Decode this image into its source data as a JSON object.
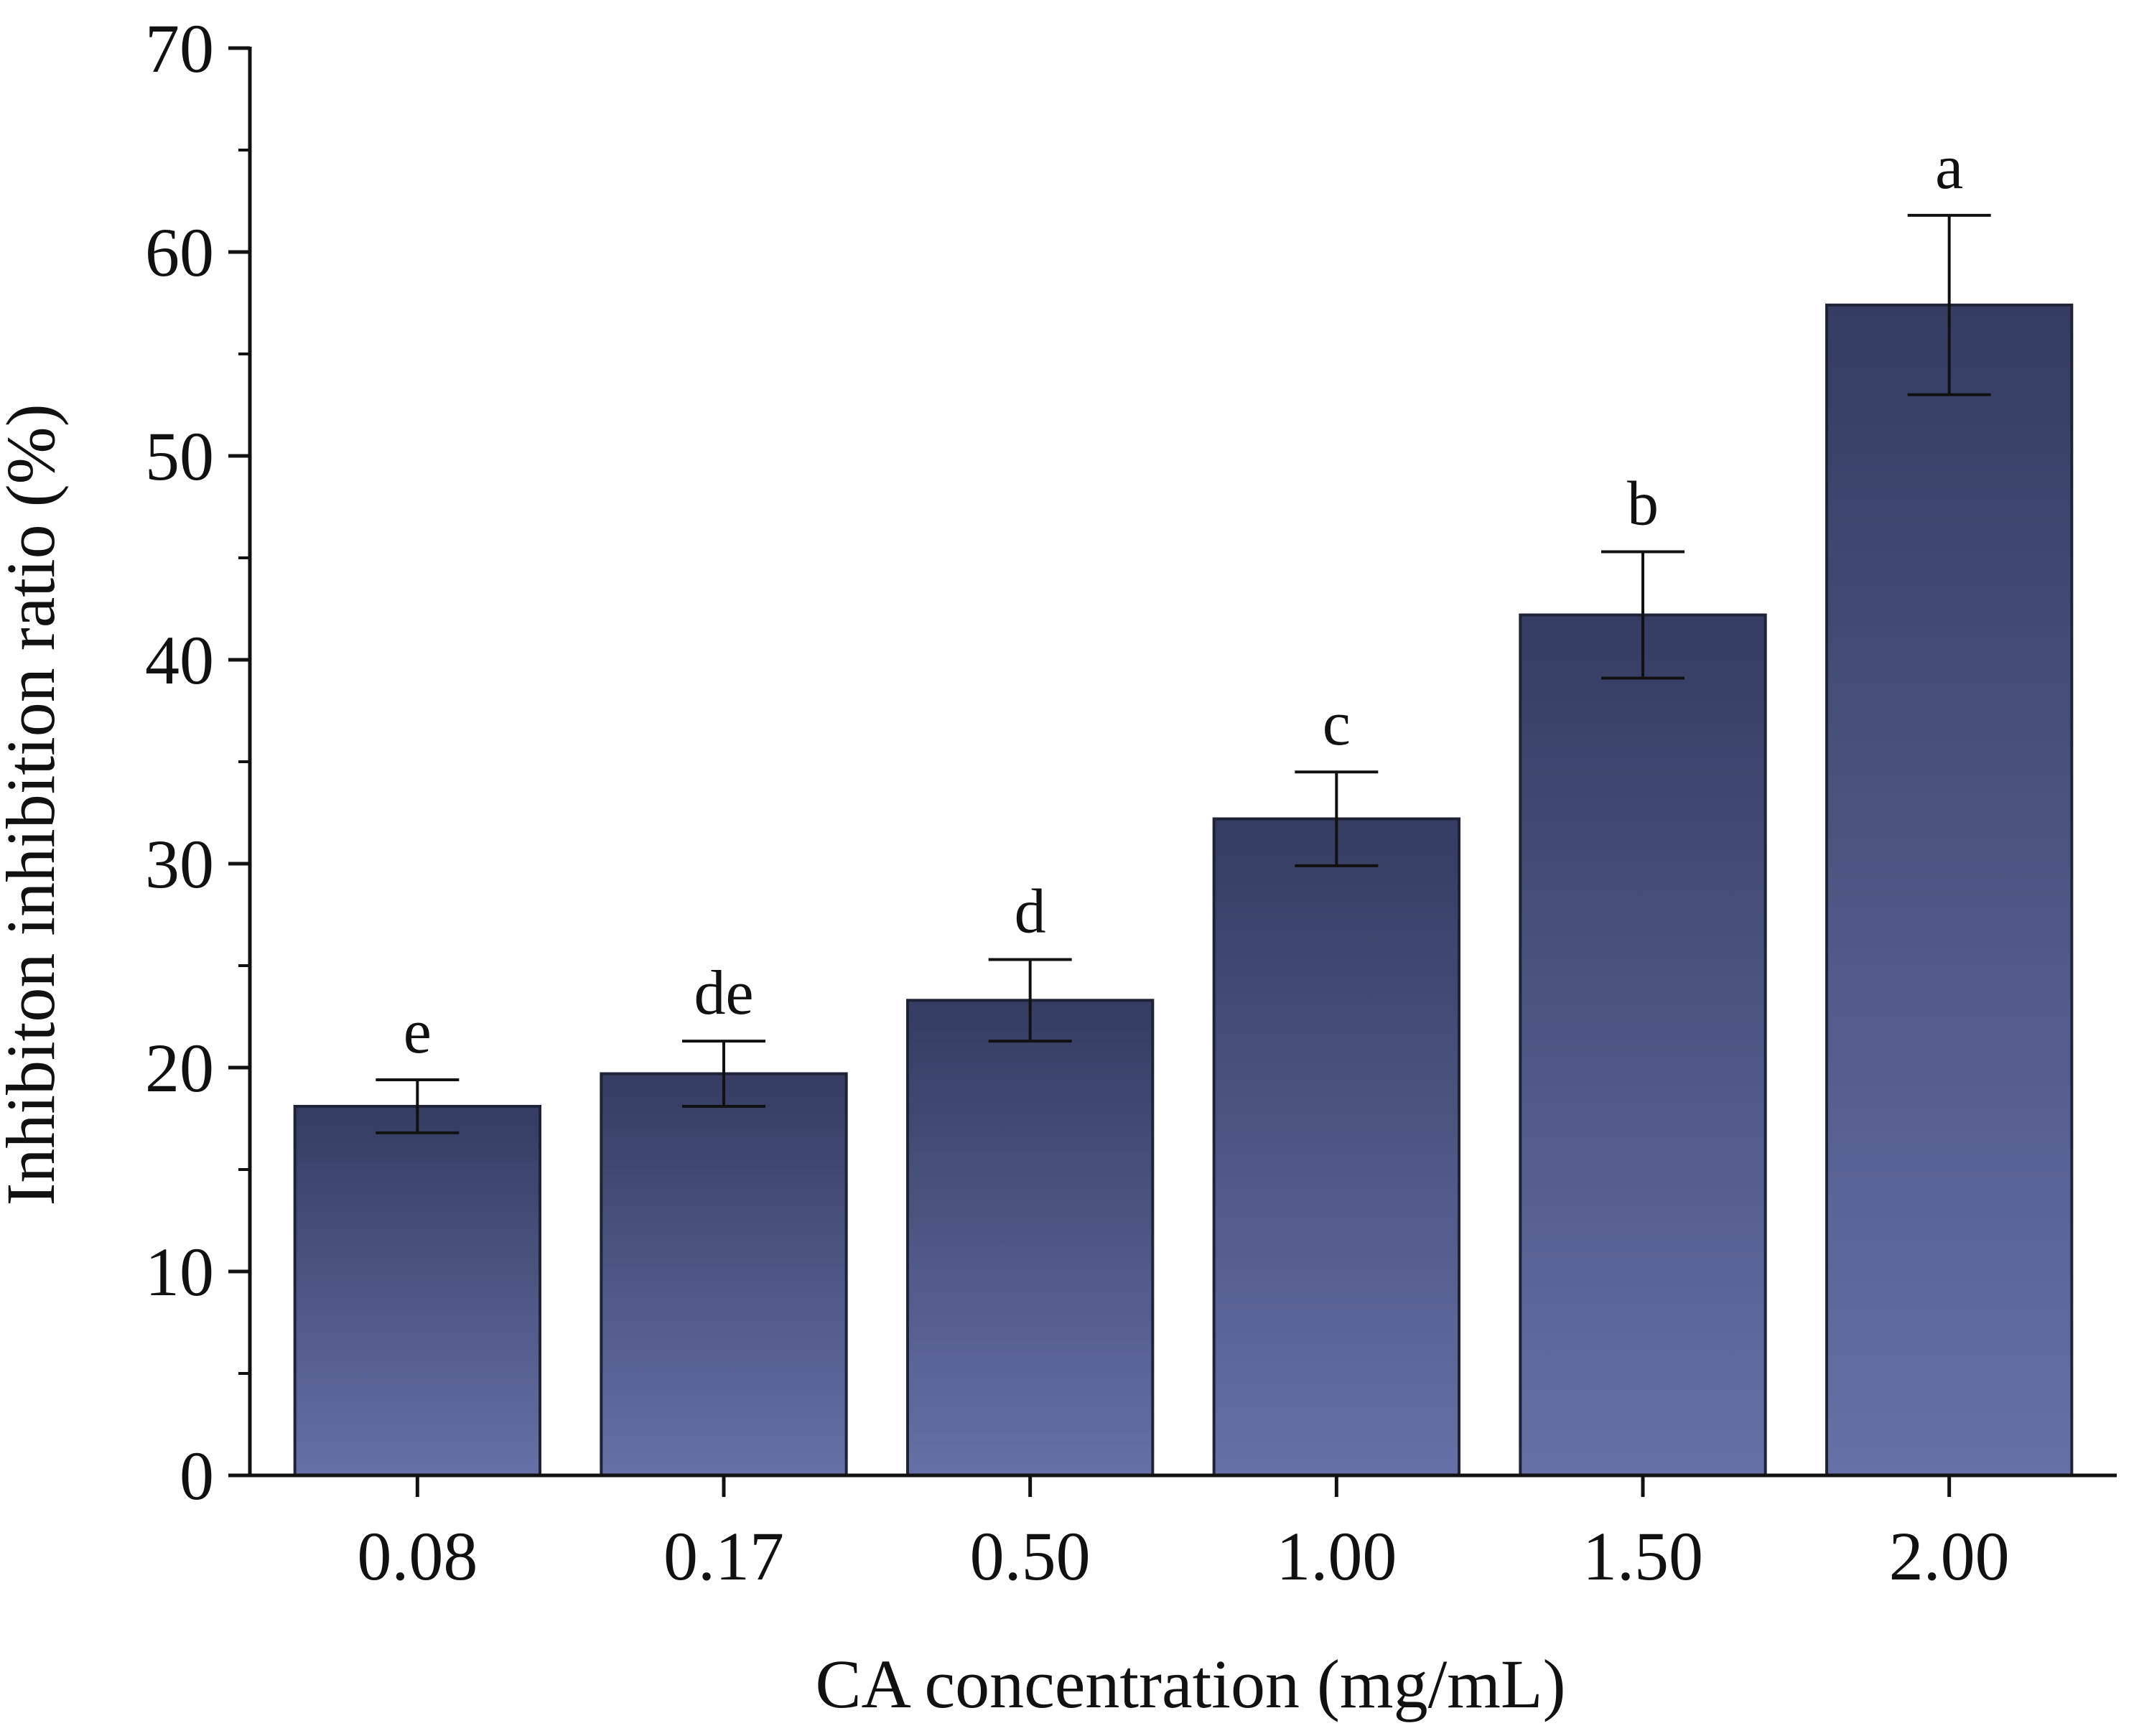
{
  "chart_data": {
    "type": "bar",
    "title": "",
    "xlabel": "CA concentration (mg/mL)",
    "ylabel": "Inhibiton inhibition ratio (%)",
    "ylim": [
      0,
      70
    ],
    "yticks": [
      0,
      10,
      20,
      30,
      40,
      50,
      60,
      70
    ],
    "categories": [
      "0.08",
      "0.17",
      "0.50",
      "1.00",
      "1.50",
      "2.00"
    ],
    "values": [
      18.1,
      19.7,
      23.3,
      32.2,
      42.2,
      57.4
    ],
    "errors": [
      1.3,
      1.6,
      2.0,
      2.3,
      3.1,
      4.4
    ],
    "significance_labels": [
      "e",
      "de",
      "d",
      "c",
      "b",
      "a"
    ],
    "grid": false,
    "legend": "none",
    "colors": {
      "bar_top": "#353c62",
      "bar_bottom": "#6670a6",
      "bar_edge": "#1e2338",
      "axis": "#111111"
    }
  }
}
